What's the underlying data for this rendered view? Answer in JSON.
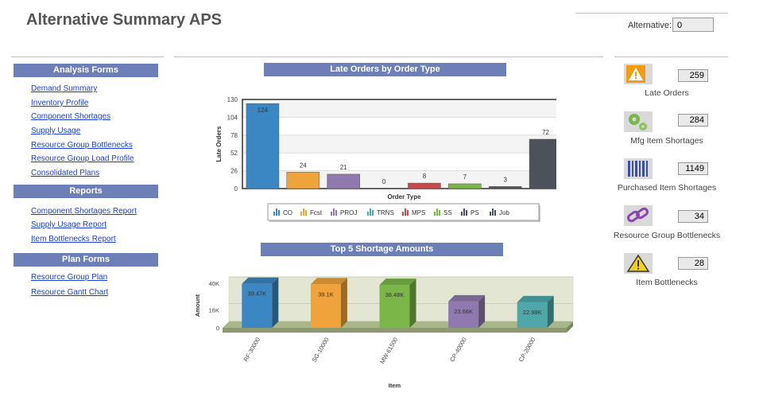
{
  "page": {
    "title": "Alternative Summary APS",
    "alternative_label": "Alternative:",
    "alternative_value": "0"
  },
  "sidebar": {
    "analysis_header": "Analysis Forms",
    "analysis_links": [
      "Demand Summary",
      "Inventory Profile",
      "Component Shortages",
      "Supply Usage",
      "Resource Group Bottlenecks",
      "Resource Group Load Profile",
      "Consolidated Plans"
    ],
    "reports_header": "Reports",
    "reports_links": [
      "Component Shortages Report",
      "Supply Usage Report",
      "Item Bottlenecks Report"
    ],
    "plan_header": "Plan Forms",
    "plan_links": [
      "Resource Group Plan",
      "Resource Gantt Chart"
    ]
  },
  "kpis": [
    {
      "icon": "warning-triangle-icon",
      "value": "259",
      "label": "Late Orders"
    },
    {
      "icon": "gears-icon",
      "value": "284",
      "label": "Mfg Item Shortages"
    },
    {
      "icon": "barcode-icon",
      "value": "1149",
      "label": "Purchased Item Shortages"
    },
    {
      "icon": "chain-link-icon",
      "value": "34",
      "label": "Resource Group Bottlenecks"
    },
    {
      "icon": "alert-sign-icon",
      "value": "28",
      "label": "Item Bottlenecks"
    }
  ],
  "chart_data": [
    {
      "type": "bar",
      "title": "Late Orders by Order Type",
      "xlabel": "Order Type",
      "ylabel": "Late Orders",
      "categories": [
        "CO",
        "Fcst",
        "PROJ",
        "TRNS",
        "MPS",
        "SS",
        "PS",
        "Job"
      ],
      "values": [
        124,
        24,
        21,
        0,
        8,
        7,
        3,
        72
      ],
      "colors": [
        "#3b87c4",
        "#f0a33a",
        "#9079ae",
        "#4fa7a9",
        "#c74a4a",
        "#7ab648",
        "#4d5159",
        "#4d5159"
      ],
      "ylim": [
        0,
        130
      ],
      "yticks": [
        0,
        26,
        52,
        78,
        104,
        130
      ],
      "legend_position": "bottom",
      "grid": true
    },
    {
      "type": "bar",
      "title": "Top 5 Shortage Amounts",
      "xlabel": "Item",
      "ylabel": "Amount",
      "categories": [
        "RF-30000",
        "SG-10000",
        "MW-61500",
        "CP-40000",
        "CP-20000"
      ],
      "values": [
        39470,
        39100,
        38480,
        23660,
        22980
      ],
      "value_labels": [
        "39.47K",
        "39.1K",
        "38.48K",
        "23.66K",
        "22.98K"
      ],
      "colors": [
        "#3b87c4",
        "#f0a33a",
        "#7ab648",
        "#9079ae",
        "#4fa7a9"
      ],
      "ylim": [
        0,
        40000
      ],
      "yticks": [
        0,
        16000,
        40000
      ],
      "ytick_labels": [
        "0",
        "16K",
        "40K"
      ],
      "style": "3d",
      "grid": true
    }
  ]
}
